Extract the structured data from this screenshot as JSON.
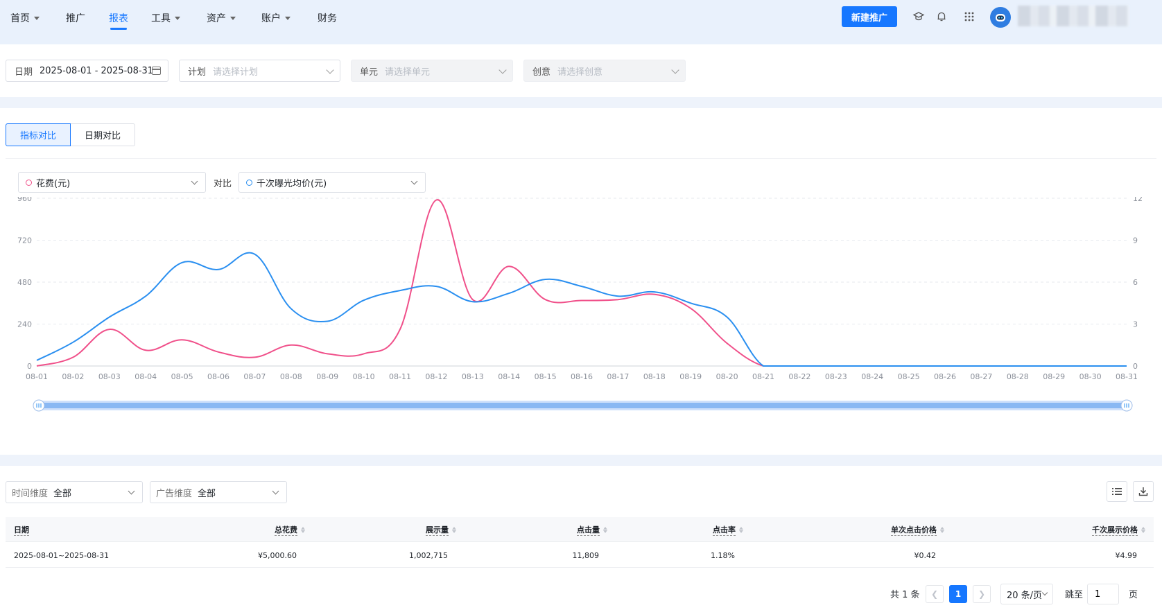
{
  "nav": {
    "items": [
      {
        "label": "首页",
        "dropdown": true
      },
      {
        "label": "推广",
        "dropdown": false
      },
      {
        "label": "报表",
        "dropdown": false,
        "active": true
      },
      {
        "label": "工具",
        "dropdown": true
      },
      {
        "label": "资产",
        "dropdown": true
      },
      {
        "label": "账户",
        "dropdown": true
      },
      {
        "label": "财务",
        "dropdown": false
      }
    ],
    "new_button": "新建推广",
    "icons": [
      "graduation-cap-icon",
      "bell-icon",
      "apps-grid-icon"
    ],
    "avatar": "robot-avatar-icon"
  },
  "filters": {
    "date_label": "日期",
    "date_value": "2025-08-01 - 2025-08-31",
    "plan_label": "计划",
    "plan_placeholder": "请选择计划",
    "unit_label": "单元",
    "unit_placeholder": "请选择单元",
    "creative_label": "创意",
    "creative_placeholder": "请选择创意"
  },
  "chart_tabs": [
    "指标对比",
    "日期对比"
  ],
  "metric_selector": {
    "left": "花费(元)",
    "vs_label": "对比",
    "right": "千次曝光均价(元)",
    "left_color": "#f0508a",
    "right_color": "#2a8ff0"
  },
  "chart_data": {
    "type": "line",
    "x": [
      "08-01",
      "08-02",
      "08-03",
      "08-04",
      "08-05",
      "08-06",
      "08-07",
      "08-08",
      "08-09",
      "08-10",
      "08-11",
      "08-12",
      "08-13",
      "08-14",
      "08-15",
      "08-16",
      "08-17",
      "08-18",
      "08-19",
      "08-20",
      "08-21",
      "08-22",
      "08-23",
      "08-24",
      "08-25",
      "08-26",
      "08-27",
      "08-28",
      "08-29",
      "08-30",
      "08-31"
    ],
    "series": [
      {
        "name": "花费(元)",
        "axis": "left",
        "color": "#f0508a",
        "values": [
          0,
          50,
          210,
          90,
          150,
          80,
          50,
          120,
          70,
          70,
          210,
          950,
          380,
          570,
          380,
          375,
          380,
          410,
          330,
          130,
          0,
          0,
          0,
          0,
          0,
          0,
          0,
          0,
          0,
          0,
          0
        ]
      },
      {
        "name": "千次曝光均价(元)",
        "axis": "right",
        "color": "#2a8ff0",
        "values": [
          0.4,
          1.7,
          3.5,
          5.0,
          7.4,
          6.9,
          8.0,
          4.1,
          3.2,
          4.7,
          5.4,
          5.7,
          4.6,
          5.2,
          6.2,
          5.7,
          5.0,
          5.3,
          4.5,
          3.5,
          0,
          0,
          0,
          0,
          0,
          0,
          0,
          0,
          0,
          0,
          0
        ]
      }
    ],
    "y_left": {
      "ticks": [
        0,
        240,
        480,
        720,
        960
      ],
      "lim": [
        0,
        960
      ]
    },
    "y_right": {
      "ticks": [
        0,
        3,
        6,
        9,
        12
      ],
      "lim": [
        0,
        12
      ]
    },
    "grid": true
  },
  "table_filters": {
    "time_label": "时间维度",
    "time_value": "全部",
    "ad_label": "广告维度",
    "ad_value": "全部"
  },
  "table": {
    "columns": [
      "日期",
      "总花费",
      "展示量",
      "点击量",
      "点击率",
      "单次点击价格",
      "千次展示价格"
    ],
    "rows": [
      [
        "2025-08-01~2025-08-31",
        "¥5,000.60",
        "1,002,715",
        "11,809",
        "1.18%",
        "¥0.42",
        "¥4.99"
      ]
    ]
  },
  "pagination": {
    "total_text": "共 1 条",
    "current_page": "1",
    "page_size": "20 条/页",
    "jump_label": "跳至",
    "jump_value": "1",
    "page_suffix": "页"
  }
}
